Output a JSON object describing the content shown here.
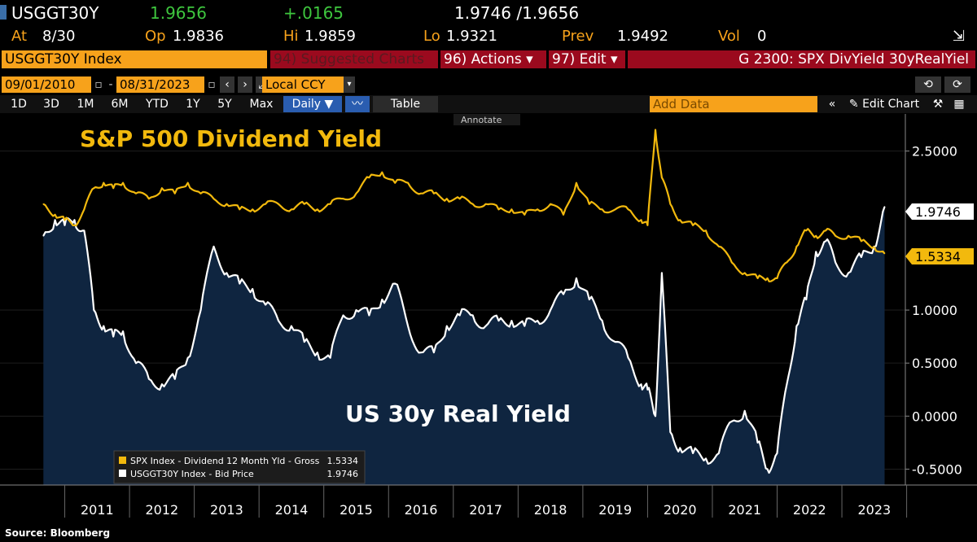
{
  "header": {
    "ticker": "USGGT30Y",
    "last": "1.9656",
    "change": "+.0165",
    "bid_ask": "1.9746 /1.9656",
    "at_label": "At",
    "at_value": "8/30",
    "op_label": "Op",
    "op_value": "1.9836",
    "hi_label": "Hi",
    "hi_value": "1.9859",
    "lo_label": "Lo",
    "lo_value": "1.9321",
    "prev_label": "Prev",
    "prev_value": "1.9492",
    "vol_label": "Vol",
    "vol_value": "0"
  },
  "menu": {
    "index": "USGGT30Y Index",
    "suggested": "94) Suggested Charts",
    "actions": "96) Actions ▾",
    "edit": "97) Edit ▾",
    "graph": "G 2300: SPX DivYield 30yRealYiel"
  },
  "controls": {
    "start_date": "09/01/2010",
    "end_date": "08/31/2023",
    "currency": "Local CCY",
    "periods": [
      "1D",
      "3D",
      "1M",
      "6M",
      "YTD",
      "1Y",
      "5Y",
      "Max"
    ],
    "frequency": "Daily ▼",
    "table": "Table",
    "add_data": "Add Data",
    "edit_chart": "Edit Chart",
    "annotate": "Annotate"
  },
  "colors": {
    "amber": "#f7a21b",
    "dividend": "#f2b90d",
    "real_yield": "#ffffff",
    "area": "#0f2540",
    "red_bar": "#9b0a1e"
  },
  "source": "Source: Bloomberg",
  "chart_data": {
    "type": "line",
    "title_series_1": "S&P 500 Dividend Yield",
    "title_series_2": "US 30y Real Yield",
    "x_tick_labels": [
      "2011",
      "2012",
      "2013",
      "2014",
      "2015",
      "2016",
      "2017",
      "2018",
      "2019",
      "2020",
      "2021",
      "2022",
      "2023"
    ],
    "y_tick_labels": [
      "2.5000",
      "1.0000",
      "0.5000",
      "0.0000",
      "-0.5000"
    ],
    "ylim": [
      -0.65,
      2.85
    ],
    "x": [
      2010.67,
      2010.85,
      2011.0,
      2011.15,
      2011.3,
      2011.45,
      2011.6,
      2011.75,
      2011.9,
      2012.1,
      2012.3,
      2012.5,
      2012.7,
      2012.9,
      2013.1,
      2013.3,
      2013.5,
      2013.7,
      2013.9,
      2014.1,
      2014.3,
      2014.5,
      2014.7,
      2014.9,
      2015.1,
      2015.3,
      2015.5,
      2015.7,
      2015.9,
      2016.1,
      2016.3,
      2016.5,
      2016.7,
      2016.9,
      2017.1,
      2017.3,
      2017.5,
      2017.7,
      2017.9,
      2018.1,
      2018.3,
      2018.5,
      2018.7,
      2018.9,
      2019.1,
      2019.3,
      2019.5,
      2019.7,
      2019.9,
      2020.0,
      2020.12,
      2020.22,
      2020.35,
      2020.5,
      2020.7,
      2020.9,
      2021.1,
      2021.3,
      2021.5,
      2021.7,
      2021.85,
      2022.0,
      2022.15,
      2022.3,
      2022.45,
      2022.6,
      2022.75,
      2022.9,
      2023.1,
      2023.3,
      2023.5,
      2023.66
    ],
    "series": [
      {
        "name": "SPX Index - Dividend 12 Month Yld - Gross",
        "last": "1.5334",
        "values": [
          2.0,
          1.9,
          1.85,
          1.8,
          1.95,
          2.15,
          2.2,
          2.15,
          2.2,
          2.1,
          2.05,
          2.15,
          2.1,
          2.2,
          2.1,
          2.05,
          2.0,
          1.95,
          1.95,
          2.0,
          2.0,
          1.95,
          2.0,
          1.95,
          2.0,
          2.05,
          2.1,
          2.25,
          2.3,
          2.2,
          2.2,
          2.1,
          2.1,
          2.05,
          2.05,
          2.0,
          2.0,
          1.95,
          1.95,
          1.9,
          1.95,
          2.0,
          1.9,
          2.2,
          2.0,
          1.95,
          1.95,
          1.95,
          1.85,
          1.8,
          2.7,
          2.25,
          2.0,
          1.85,
          1.8,
          1.75,
          1.6,
          1.45,
          1.35,
          1.3,
          1.3,
          1.3,
          1.45,
          1.6,
          1.75,
          1.7,
          1.75,
          1.7,
          1.7,
          1.65,
          1.6,
          1.5334
        ]
      },
      {
        "name": "USGGT30Y Index - Bid Price",
        "last": "1.9746",
        "values": [
          1.7,
          1.85,
          1.8,
          1.85,
          1.75,
          1.0,
          0.85,
          0.75,
          0.8,
          0.5,
          0.35,
          0.3,
          0.35,
          0.55,
          1.0,
          1.6,
          1.35,
          1.25,
          1.2,
          1.05,
          0.9,
          0.85,
          0.7,
          0.6,
          0.55,
          0.95,
          1.0,
          0.95,
          1.1,
          1.25,
          0.85,
          0.6,
          0.6,
          0.85,
          0.95,
          0.95,
          0.85,
          0.9,
          0.9,
          0.85,
          0.9,
          1.0,
          1.15,
          1.3,
          1.1,
          0.9,
          0.7,
          0.55,
          0.3,
          0.25,
          0.0,
          1.35,
          -0.15,
          -0.3,
          -0.35,
          -0.4,
          -0.35,
          -0.05,
          0.05,
          -0.25,
          -0.5,
          -0.35,
          0.3,
          0.85,
          1.1,
          1.55,
          1.65,
          1.45,
          1.35,
          1.5,
          1.6,
          1.9746
        ]
      }
    ]
  }
}
